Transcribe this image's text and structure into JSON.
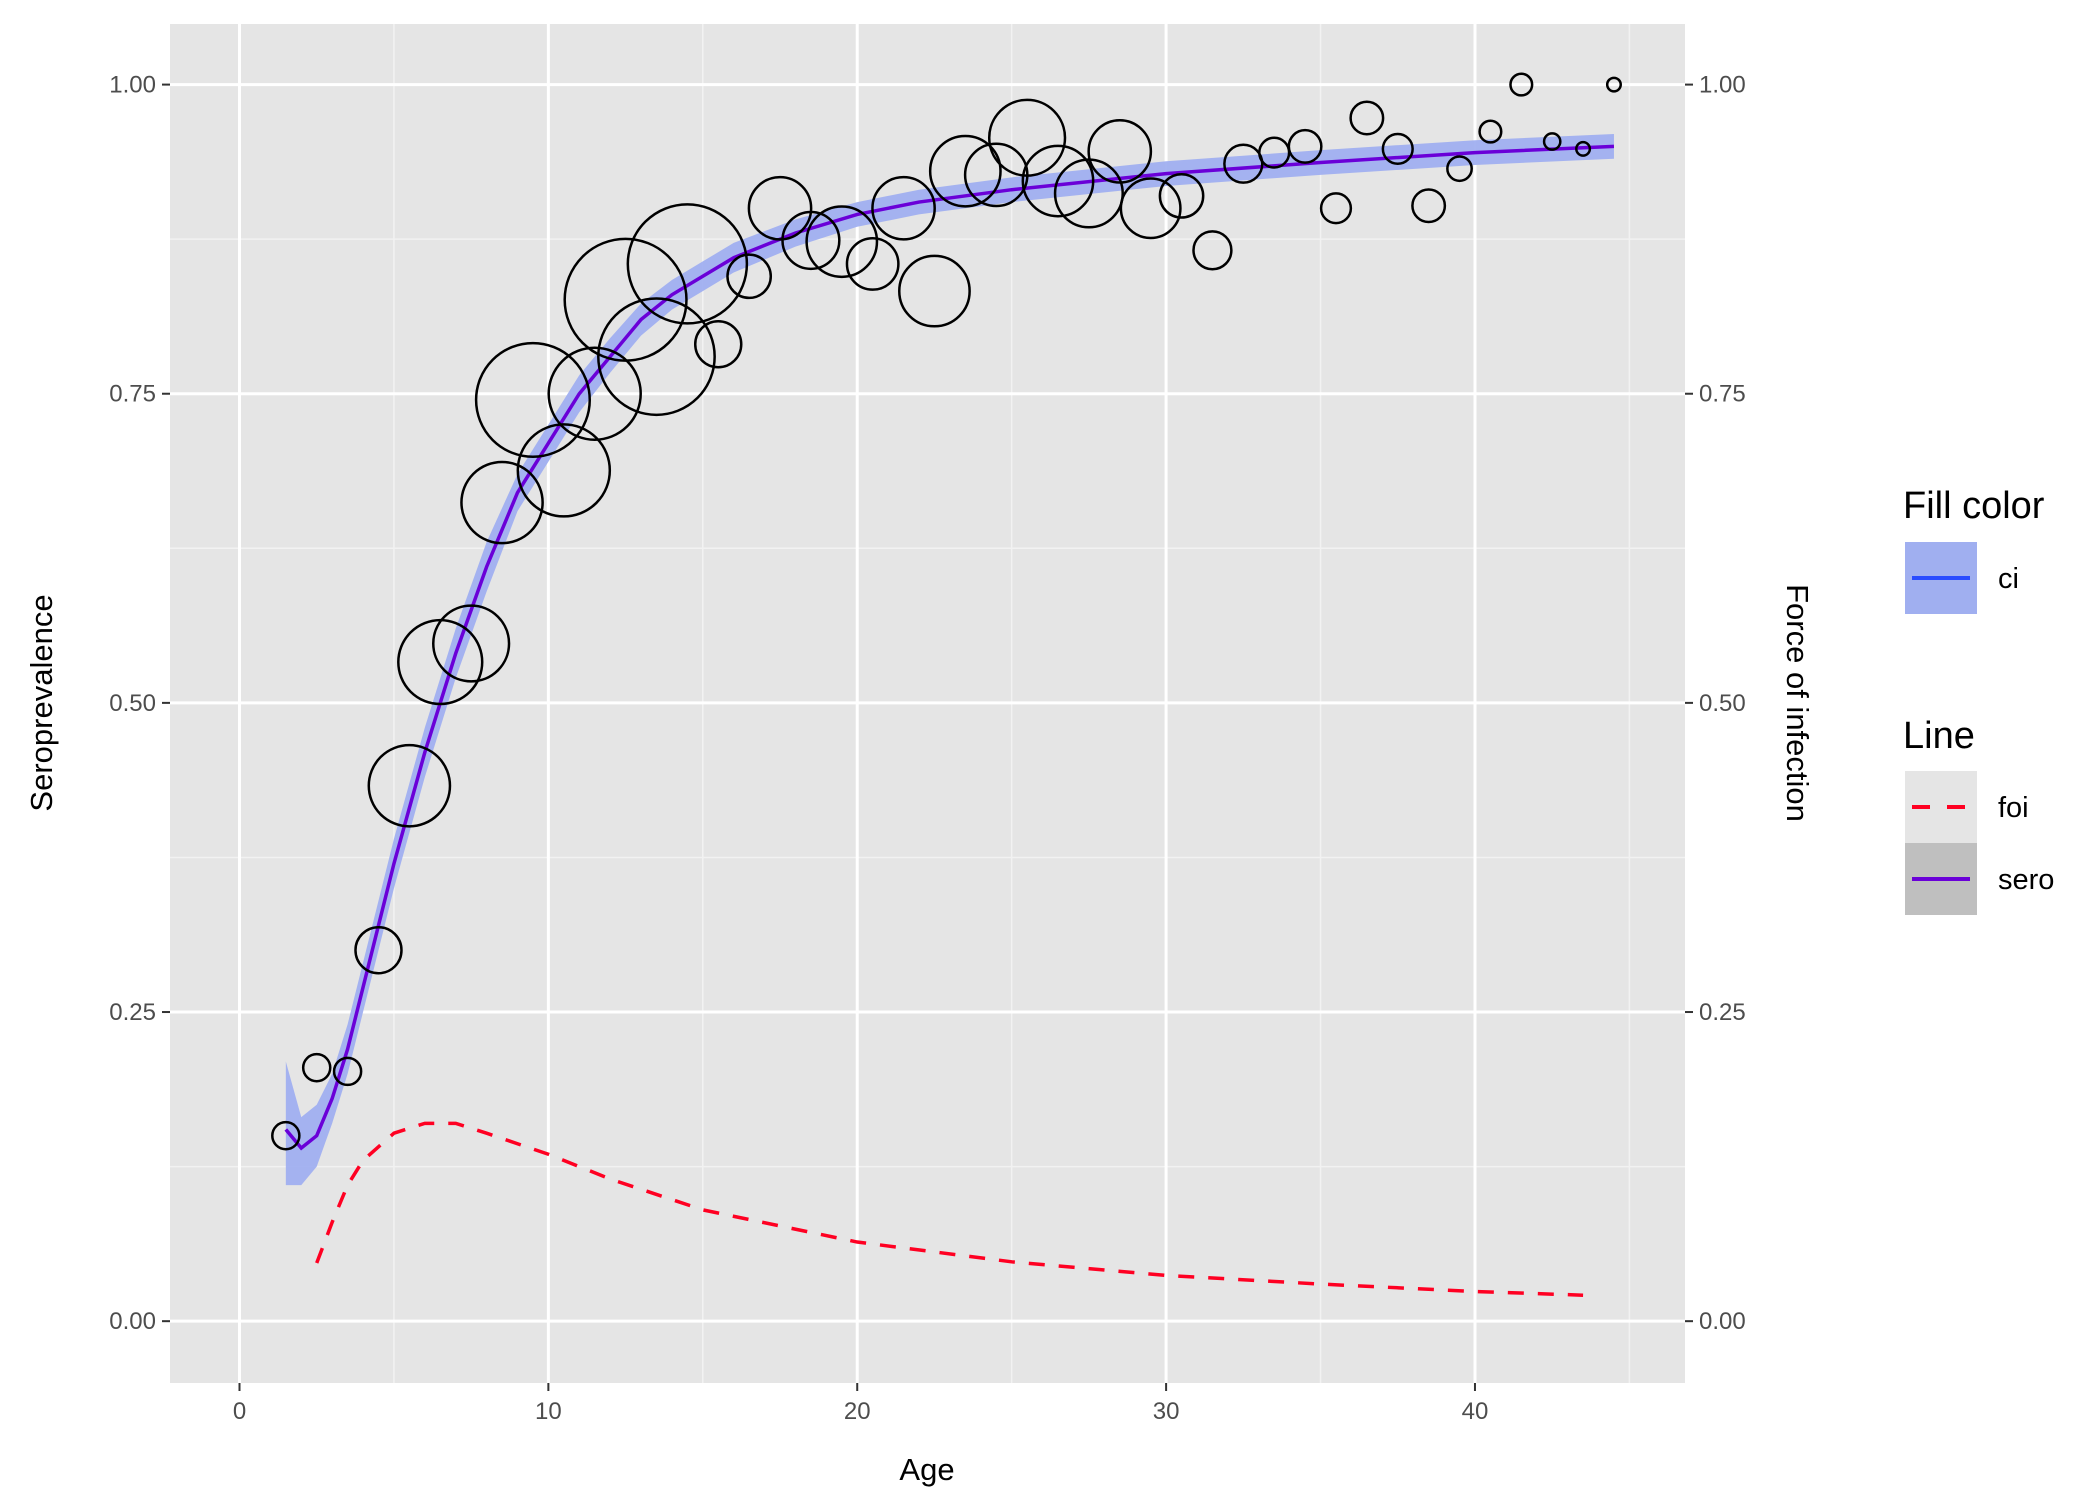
{
  "chart_data": {
    "type": "scatter",
    "xlabel": "Age",
    "ylabel": "Seroprevalence",
    "ylabel_right": "Force of infection",
    "xlim": [
      -2.25,
      46.8
    ],
    "ylim": [
      -0.05,
      1.049
    ],
    "x_ticks": [
      0,
      10,
      20,
      30,
      40
    ],
    "x_tick_labels": [
      "0",
      "10",
      "20",
      "30",
      "40"
    ],
    "y_ticks": [
      0,
      0.25,
      0.5,
      0.75,
      1.0
    ],
    "y_tick_labels": [
      "0.00",
      "0.25",
      "0.50",
      "0.75",
      "1.00"
    ],
    "y_right_tick_labels": [
      "0.00",
      "0.25",
      "0.50",
      "0.75",
      "1.00"
    ],
    "grid": true,
    "background": "#e5e5e5",
    "points": {
      "x": [
        1.5,
        2.5,
        3.5,
        4.5,
        5.5,
        6.5,
        7.5,
        8.5,
        9.5,
        10.5,
        11.5,
        12.5,
        13.5,
        14.5,
        15.5,
        16.5,
        17.5,
        18.5,
        19.5,
        20.5,
        21.5,
        22.5,
        23.5,
        24.5,
        25.5,
        26.5,
        27.5,
        28.5,
        29.5,
        30.5,
        31.5,
        32.5,
        33.5,
        34.5,
        35.5,
        36.5,
        37.5,
        38.5,
        39.5,
        40.5,
        41.5,
        42.5,
        43.5,
        44.5
      ],
      "y": [
        0.15,
        0.205,
        0.202,
        0.3,
        0.433,
        0.533,
        0.548,
        0.662,
        0.745,
        0.688,
        0.75,
        0.826,
        0.78,
        0.855,
        0.79,
        0.845,
        0.9,
        0.874,
        0.873,
        0.855,
        0.9,
        0.833,
        0.93,
        0.927,
        0.957,
        0.922,
        0.912,
        0.946,
        0.9,
        0.91,
        0.866,
        0.936,
        0.945,
        0.95,
        0.9,
        0.973,
        0.948,
        0.902,
        0.932,
        0.962,
        1.0,
        0.954,
        0.948,
        1.0
      ],
      "size": [
        10,
        10,
        10,
        17,
        30,
        31,
        28,
        30,
        42,
        34,
        34,
        45,
        43,
        44,
        17,
        16,
        23,
        21,
        26,
        19,
        23,
        26,
        26,
        23,
        28,
        26,
        25,
        23,
        22,
        16,
        14,
        14,
        11,
        12,
        11,
        12,
        11,
        12,
        9,
        8,
        8,
        6,
        5,
        5
      ]
    },
    "series": [
      {
        "name": "sero",
        "color": "#6a00d8",
        "dash": "solid",
        "x": [
          1.5,
          2,
          2.5,
          3,
          3.5,
          4,
          5,
          6,
          7,
          8,
          9,
          10,
          11,
          12,
          13,
          14,
          15,
          16,
          18,
          20,
          22,
          25,
          30,
          35,
          40,
          44.5
        ],
        "y": [
          0.155,
          0.14,
          0.15,
          0.18,
          0.22,
          0.27,
          0.37,
          0.46,
          0.54,
          0.61,
          0.67,
          0.71,
          0.75,
          0.78,
          0.81,
          0.83,
          0.845,
          0.86,
          0.88,
          0.895,
          0.905,
          0.915,
          0.928,
          0.937,
          0.945,
          0.95
        ]
      },
      {
        "name": "foi",
        "color": "#ff0022",
        "dash": "dashed",
        "x": [
          2.5,
          3,
          3.5,
          4,
          5,
          6,
          7,
          8,
          10,
          12,
          15,
          20,
          25,
          30,
          35,
          40,
          43.5
        ],
        "y": [
          0.047,
          0.08,
          0.11,
          0.13,
          0.152,
          0.16,
          0.16,
          0.152,
          0.135,
          0.115,
          0.09,
          0.064,
          0.048,
          0.037,
          0.03,
          0.024,
          0.021
        ]
      }
    ],
    "ci": {
      "name": "ci",
      "color": "#a0aff0",
      "x": [
        1.5,
        2,
        2.5,
        3,
        3.5,
        4,
        5,
        6,
        7,
        8,
        9,
        10,
        11,
        12,
        13,
        14,
        15,
        16,
        18,
        20,
        22,
        25,
        30,
        35,
        40,
        44.5
      ],
      "lower": [
        0.11,
        0.11,
        0.125,
        0.16,
        0.2,
        0.25,
        0.35,
        0.44,
        0.52,
        0.59,
        0.655,
        0.695,
        0.735,
        0.767,
        0.797,
        0.818,
        0.833,
        0.848,
        0.869,
        0.885,
        0.895,
        0.905,
        0.918,
        0.927,
        0.935,
        0.94
      ],
      "upper": [
        0.21,
        0.165,
        0.175,
        0.2,
        0.24,
        0.29,
        0.39,
        0.48,
        0.56,
        0.63,
        0.685,
        0.725,
        0.765,
        0.795,
        0.823,
        0.842,
        0.857,
        0.872,
        0.891,
        0.905,
        0.915,
        0.925,
        0.938,
        0.947,
        0.955,
        0.96
      ]
    },
    "legend": {
      "placement": "right",
      "fill_title": "Fill color",
      "fill_items": [
        {
          "label": "ci",
          "fill": "#a0aff0",
          "line": "#2a4cff"
        }
      ],
      "line_title": "Line",
      "line_items": [
        {
          "label": "foi",
          "fill": "#e5e5e5",
          "line": "#ff0022",
          "dash": "dashed"
        },
        {
          "label": "sero",
          "fill": "#bfbfbf",
          "line": "#6a00d8",
          "dash": "solid"
        }
      ]
    }
  }
}
